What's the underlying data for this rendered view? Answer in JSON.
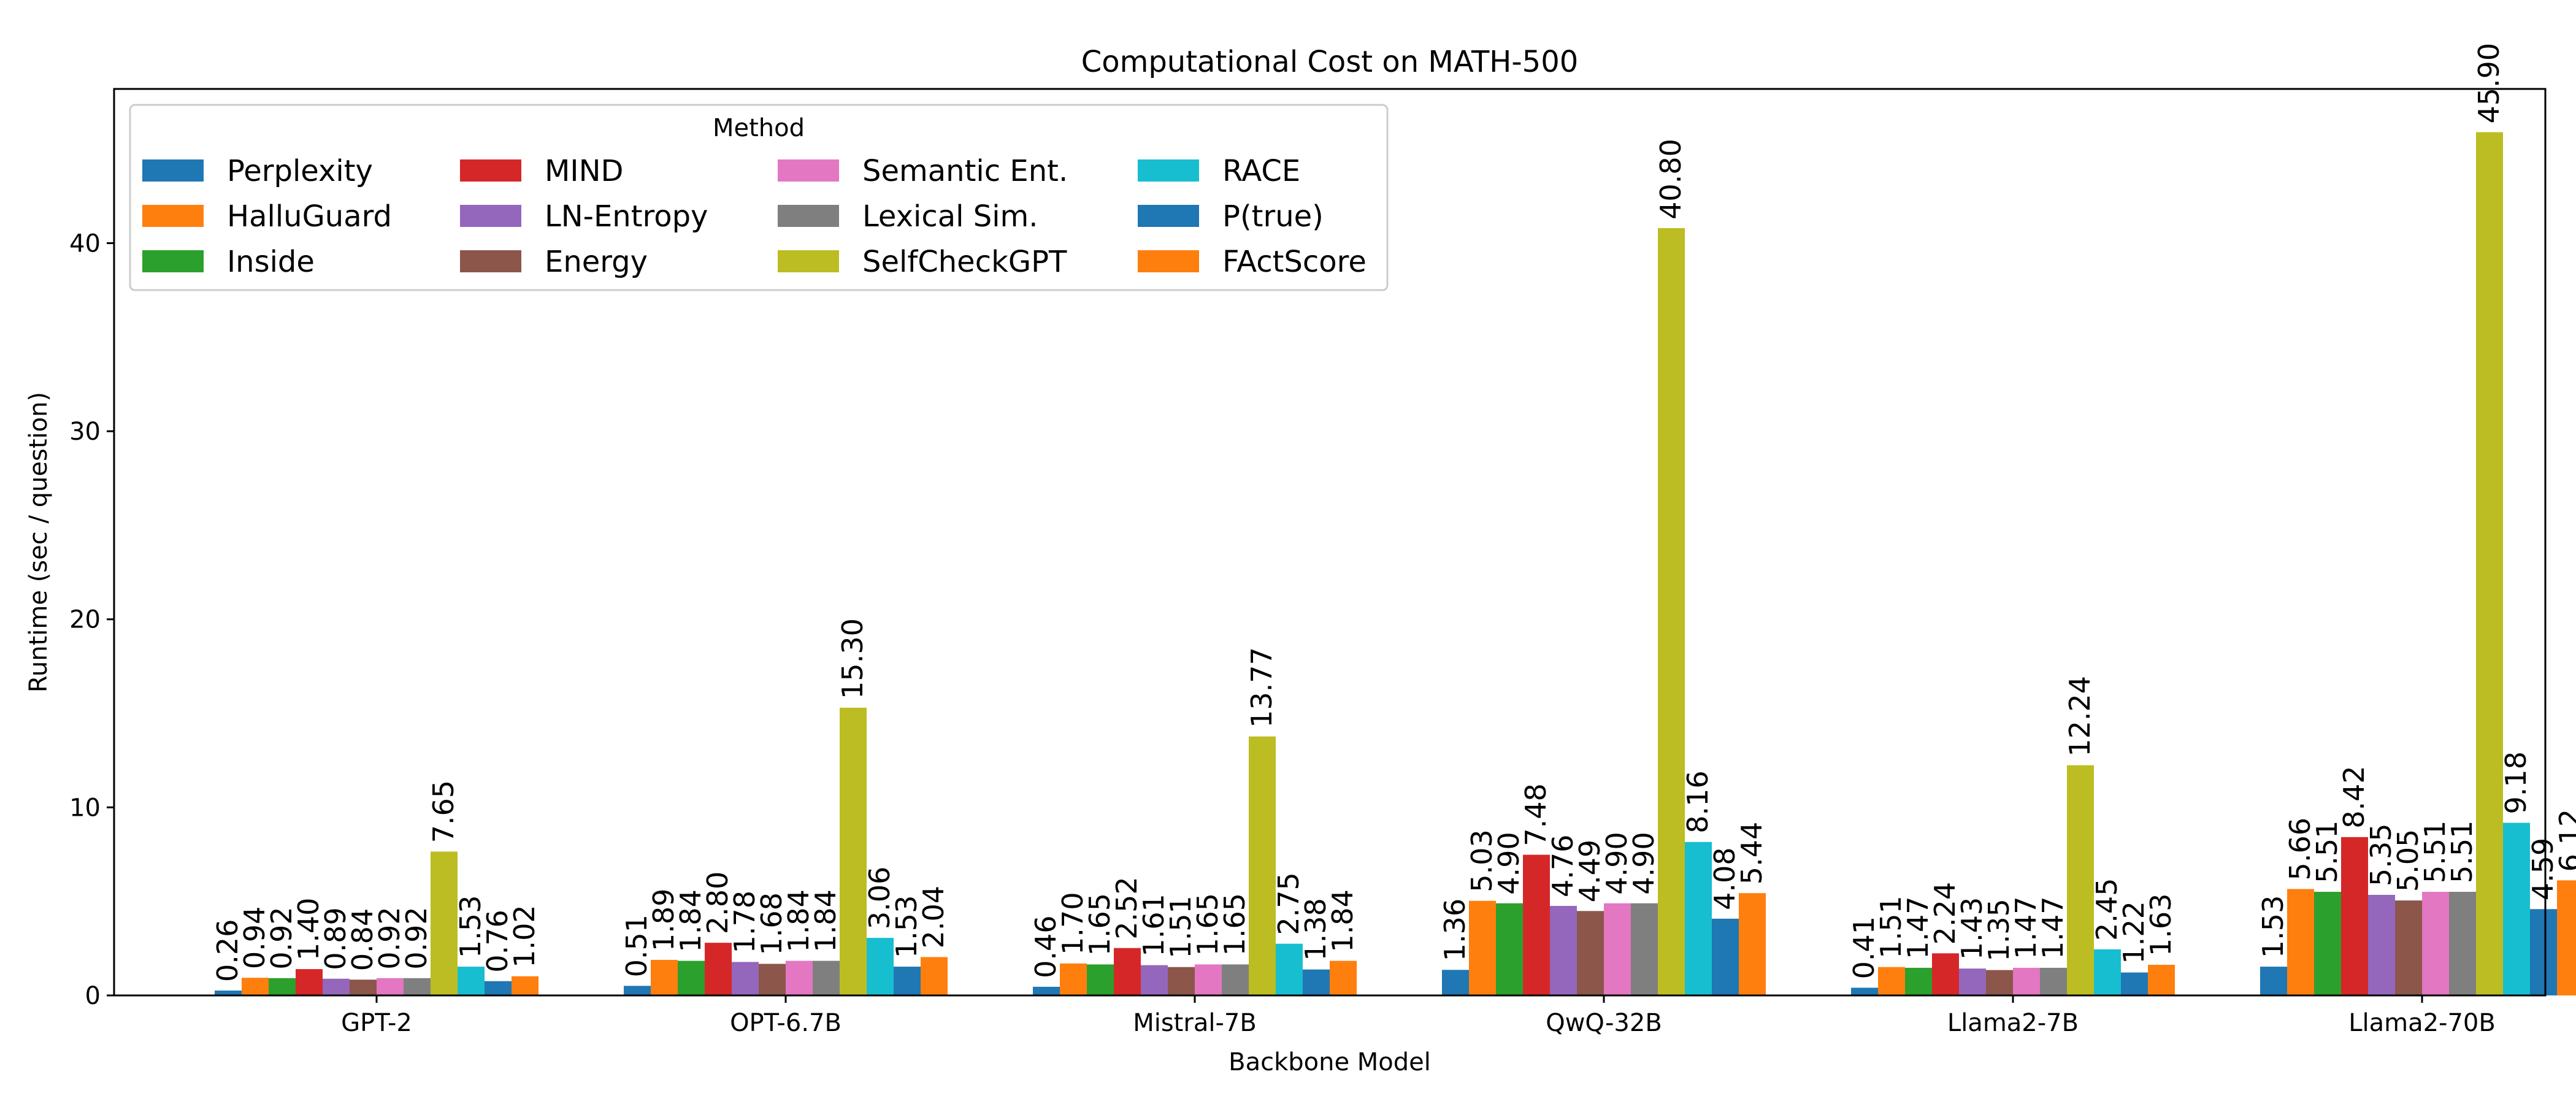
{
  "chart_data": {
    "type": "bar",
    "title": "Computational Cost on MATH-500",
    "xlabel": "Backbone Model",
    "ylabel": "Runtime (sec / question)",
    "ylim": [
      0,
      48.2
    ],
    "yticks": [
      0,
      10,
      20,
      30,
      40
    ],
    "grid": false,
    "legend": {
      "title": "Method",
      "placement": "top-left",
      "columns": 4
    },
    "categories": [
      "GPT-2",
      "OPT-6.7B",
      "Mistral-7B",
      "QwQ-32B",
      "Llama2-7B",
      "Llama2-70B"
    ],
    "series": [
      {
        "name": "Perplexity",
        "color": "#1f77b4",
        "values": [
          0.26,
          0.51,
          0.46,
          1.36,
          0.41,
          1.53
        ]
      },
      {
        "name": "HalluGuard",
        "color": "#ff7f0e",
        "values": [
          0.94,
          1.89,
          1.7,
          5.03,
          1.51,
          5.66
        ]
      },
      {
        "name": "Inside",
        "color": "#2ca02c",
        "values": [
          0.92,
          1.84,
          1.65,
          4.9,
          1.47,
          5.51
        ]
      },
      {
        "name": "MIND",
        "color": "#d62728",
        "values": [
          1.4,
          2.8,
          2.52,
          7.48,
          2.24,
          8.42
        ]
      },
      {
        "name": "LN-Entropy",
        "color": "#9467bd",
        "values": [
          0.89,
          1.78,
          1.61,
          4.76,
          1.43,
          5.35
        ]
      },
      {
        "name": "Energy",
        "color": "#8c564b",
        "values": [
          0.84,
          1.68,
          1.51,
          4.49,
          1.35,
          5.05
        ]
      },
      {
        "name": "Semantic Ent.",
        "color": "#e377c2",
        "values": [
          0.92,
          1.84,
          1.65,
          4.9,
          1.47,
          5.51
        ]
      },
      {
        "name": "Lexical Sim.",
        "color": "#7f7f7f",
        "values": [
          0.92,
          1.84,
          1.65,
          4.9,
          1.47,
          5.51
        ]
      },
      {
        "name": "SelfCheckGPT",
        "color": "#bcbd22",
        "values": [
          7.65,
          15.3,
          13.77,
          40.8,
          12.24,
          45.9
        ]
      },
      {
        "name": "RACE",
        "color": "#17becf",
        "values": [
          1.53,
          3.06,
          2.75,
          8.16,
          2.45,
          9.18
        ]
      },
      {
        "name": "P(true)",
        "color": "#1f77b4",
        "values": [
          0.76,
          1.53,
          1.38,
          4.08,
          1.22,
          4.59
        ]
      },
      {
        "name": "FActScore",
        "color": "#ff7f0e",
        "values": [
          1.02,
          2.04,
          1.84,
          5.44,
          1.63,
          6.12
        ]
      }
    ]
  }
}
